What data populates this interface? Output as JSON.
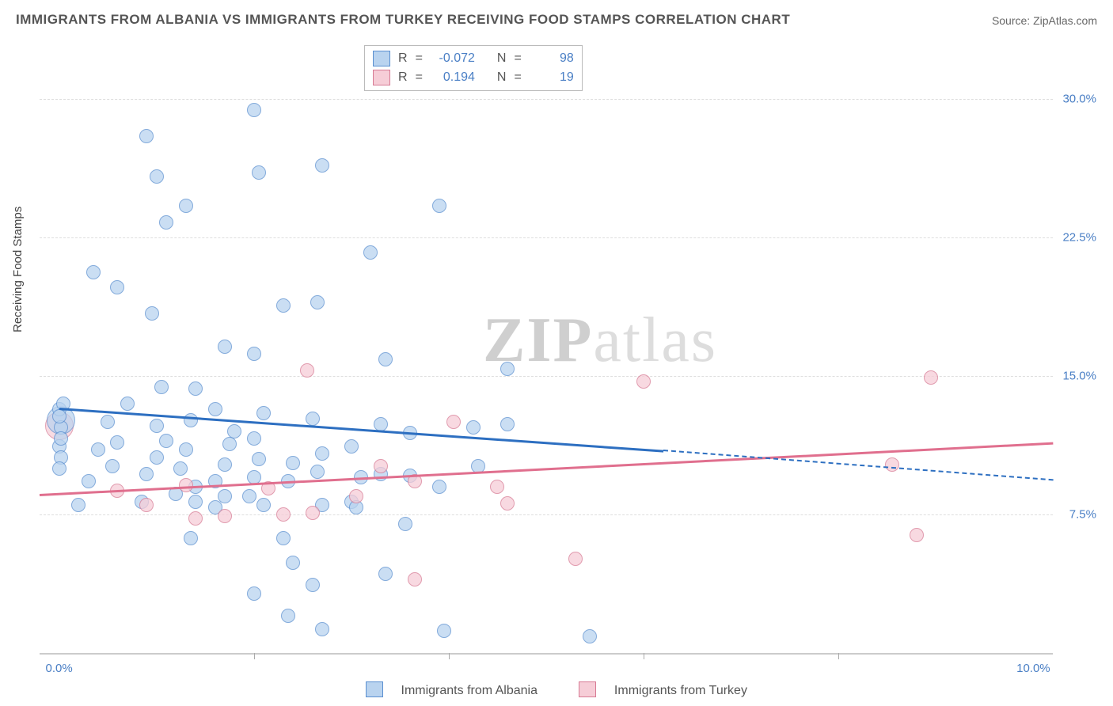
{
  "title": "IMMIGRANTS FROM ALBANIA VS IMMIGRANTS FROM TURKEY RECEIVING FOOD STAMPS CORRELATION CHART",
  "source_label": "Source:",
  "source_name": "ZipAtlas.com",
  "ylabel": "Receiving Food Stamps",
  "watermark_bold": "ZIP",
  "watermark_rest": "atlas",
  "legend": {
    "series_a_label": "Immigrants from Albania",
    "series_b_label": "Immigrants from Turkey"
  },
  "stats": {
    "r_label": "R",
    "n_label": "N",
    "eq": "=",
    "a_r": "-0.072",
    "a_n": "98",
    "b_r": "0.194",
    "b_n": "19"
  },
  "axes": {
    "xlim": [
      -0.2,
      10.2
    ],
    "ylim": [
      0,
      33
    ],
    "yticks": [
      {
        "v": 7.5,
        "label": "7.5%"
      },
      {
        "v": 15.0,
        "label": "15.0%"
      },
      {
        "v": 22.5,
        "label": "22.5%"
      },
      {
        "v": 30.0,
        "label": "30.0%"
      }
    ],
    "xticks": [
      {
        "v": 0.0,
        "label": "0.0%"
      },
      {
        "v": 10.0,
        "label": "10.0%"
      }
    ],
    "xminor": [
      2.0,
      4.0,
      6.0,
      8.0
    ]
  },
  "colors": {
    "a_fill": "#b9d3ef",
    "a_stroke": "#5a8fd0",
    "a_line": "#2d6fc1",
    "b_fill": "#f6cdd7",
    "b_stroke": "#d77a94",
    "b_line": "#e06f8e",
    "grid": "#dddddd",
    "axis": "#cccccc"
  },
  "series_a": {
    "big": {
      "x": 0.02,
      "y": 12.6
    },
    "points": [
      [
        0.0,
        13.2
      ],
      [
        0.02,
        12.2
      ],
      [
        0.0,
        11.2
      ],
      [
        0.02,
        10.6
      ],
      [
        0.0,
        10.0
      ],
      [
        0.04,
        13.5
      ],
      [
        0.02,
        11.6
      ],
      [
        0.0,
        12.8
      ],
      [
        0.35,
        20.6
      ],
      [
        0.6,
        19.8
      ],
      [
        0.5,
        12.5
      ],
      [
        0.3,
        9.3
      ],
      [
        0.2,
        8.0
      ],
      [
        0.7,
        13.5
      ],
      [
        0.6,
        11.4
      ],
      [
        0.55,
        10.1
      ],
      [
        0.4,
        11.0
      ],
      [
        0.9,
        28.0
      ],
      [
        1.0,
        25.8
      ],
      [
        1.1,
        23.3
      ],
      [
        0.95,
        18.4
      ],
      [
        1.05,
        14.4
      ],
      [
        1.0,
        12.3
      ],
      [
        0.9,
        9.7
      ],
      [
        1.0,
        10.6
      ],
      [
        1.1,
        11.5
      ],
      [
        0.85,
        8.2
      ],
      [
        1.3,
        24.2
      ],
      [
        1.4,
        14.3
      ],
      [
        1.35,
        12.6
      ],
      [
        1.3,
        11.0
      ],
      [
        1.25,
        10.0
      ],
      [
        1.4,
        9.0
      ],
      [
        1.2,
        8.6
      ],
      [
        1.35,
        6.2
      ],
      [
        1.4,
        8.2
      ],
      [
        1.6,
        13.2
      ],
      [
        1.7,
        16.6
      ],
      [
        1.75,
        11.3
      ],
      [
        1.7,
        10.2
      ],
      [
        1.8,
        12.0
      ],
      [
        1.6,
        9.3
      ],
      [
        1.7,
        8.5
      ],
      [
        1.6,
        7.9
      ],
      [
        2.0,
        29.4
      ],
      [
        2.05,
        26.0
      ],
      [
        2.0,
        16.2
      ],
      [
        2.1,
        13.0
      ],
      [
        2.0,
        11.6
      ],
      [
        2.05,
        10.5
      ],
      [
        2.0,
        9.5
      ],
      [
        1.95,
        8.5
      ],
      [
        2.1,
        8.0
      ],
      [
        2.0,
        3.2
      ],
      [
        2.3,
        18.8
      ],
      [
        2.4,
        10.3
      ],
      [
        2.35,
        9.3
      ],
      [
        2.4,
        4.9
      ],
      [
        2.3,
        6.2
      ],
      [
        2.35,
        2.0
      ],
      [
        2.7,
        26.4
      ],
      [
        2.65,
        19.0
      ],
      [
        2.6,
        12.7
      ],
      [
        2.7,
        10.8
      ],
      [
        2.65,
        9.8
      ],
      [
        2.7,
        8.0
      ],
      [
        2.6,
        3.7
      ],
      [
        2.7,
        1.3
      ],
      [
        3.0,
        11.2
      ],
      [
        3.1,
        9.5
      ],
      [
        3.0,
        8.2
      ],
      [
        3.05,
        7.9
      ],
      [
        3.2,
        21.7
      ],
      [
        3.35,
        15.9
      ],
      [
        3.3,
        12.4
      ],
      [
        3.3,
        9.7
      ],
      [
        3.35,
        4.3
      ],
      [
        3.6,
        11.9
      ],
      [
        3.6,
        9.6
      ],
      [
        3.55,
        7.0
      ],
      [
        3.9,
        24.2
      ],
      [
        3.9,
        9.0
      ],
      [
        3.95,
        1.2
      ],
      [
        4.25,
        12.2
      ],
      [
        4.3,
        10.1
      ],
      [
        4.6,
        12.4
      ],
      [
        4.6,
        15.4
      ],
      [
        5.45,
        0.9
      ]
    ],
    "trend": {
      "x1": 0.0,
      "y1": 13.3,
      "x2": 6.2,
      "y2": 11.0
    },
    "trend_ext": {
      "x1": 6.2,
      "y1": 11.0,
      "x2": 10.2,
      "y2": 9.4
    }
  },
  "series_b": {
    "big": {
      "x": 0.0,
      "y": 12.3
    },
    "points": [
      [
        0.6,
        8.8
      ],
      [
        0.9,
        8.0
      ],
      [
        1.3,
        9.1
      ],
      [
        1.4,
        7.3
      ],
      [
        1.7,
        7.4
      ],
      [
        2.15,
        8.9
      ],
      [
        2.3,
        7.5
      ],
      [
        2.55,
        15.3
      ],
      [
        2.6,
        7.6
      ],
      [
        3.05,
        8.5
      ],
      [
        3.3,
        10.1
      ],
      [
        3.65,
        4.0
      ],
      [
        3.65,
        9.3
      ],
      [
        4.05,
        12.5
      ],
      [
        4.5,
        9.0
      ],
      [
        4.6,
        8.1
      ],
      [
        5.3,
        5.1
      ],
      [
        6.0,
        14.7
      ],
      [
        8.55,
        10.2
      ],
      [
        8.8,
        6.4
      ],
      [
        8.95,
        14.9
      ]
    ],
    "trend": {
      "x1": -0.2,
      "y1": 8.6,
      "x2": 10.2,
      "y2": 11.4
    }
  }
}
